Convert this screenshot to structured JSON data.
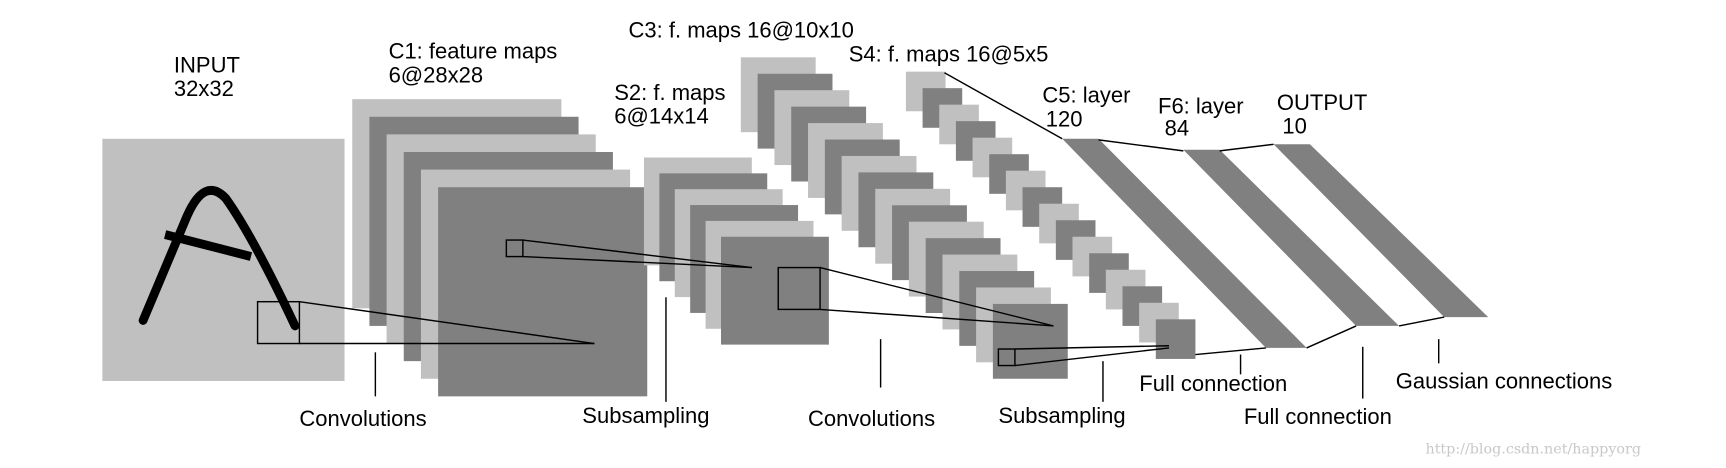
{
  "layers": [
    {
      "name": "INPUT",
      "size": "32x32"
    },
    {
      "name": "C1: feature maps",
      "size": "6@28x28"
    },
    {
      "name": "S2: f. maps",
      "size": "6@14x14"
    },
    {
      "name": "C3: f. maps 16@10x10"
    },
    {
      "name": "S4: f. maps 16@5x5"
    },
    {
      "name": "C5: layer",
      "size": "120"
    },
    {
      "name": "F6: layer",
      "size": "84"
    },
    {
      "name": "OUTPUT",
      "size": "10"
    }
  ],
  "connections": [
    "Convolutions",
    "Subsampling",
    "Convolutions",
    "Subsampling",
    "Full connection",
    "Full connection",
    "Gaussian connections"
  ],
  "watermark": "http://blog.csdn.net/happyorg"
}
